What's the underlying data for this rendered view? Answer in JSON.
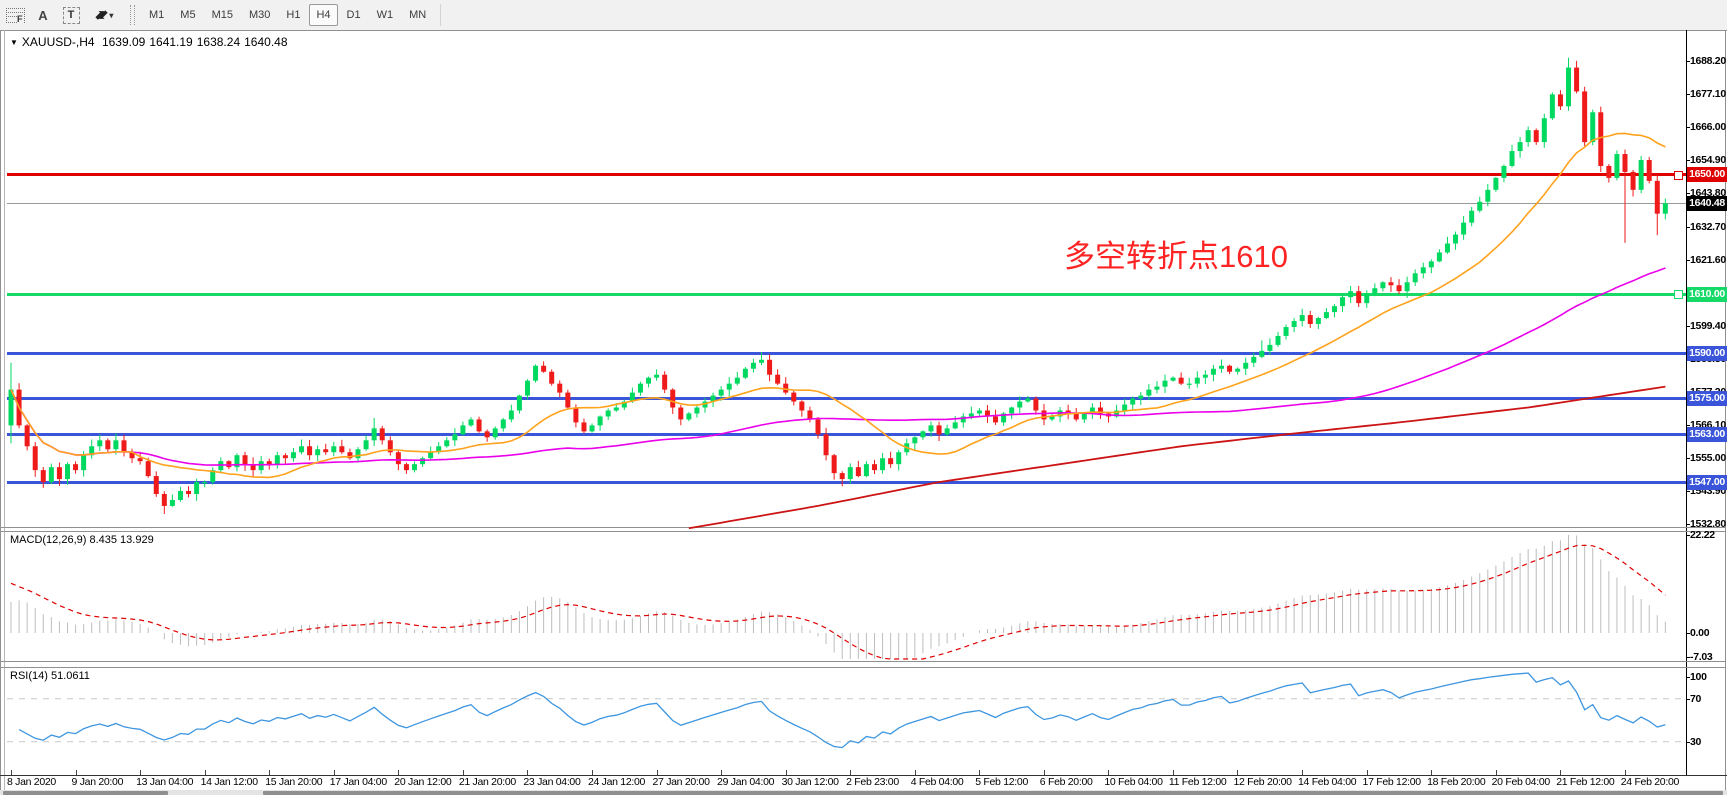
{
  "toolbar": {
    "tools": [
      {
        "name": "fibonacci-tool",
        "label": "F"
      },
      {
        "name": "text-label-tool",
        "label": "A"
      },
      {
        "name": "text-tool",
        "label": "T"
      },
      {
        "name": "arrows-tool",
        "label": "arrows"
      }
    ],
    "timeframes": [
      "M1",
      "M5",
      "M15",
      "M30",
      "H1",
      "H4",
      "D1",
      "W1",
      "MN"
    ],
    "active_timeframe": "H4"
  },
  "chart_header": {
    "symbol_period": "XAUUSD-,H4",
    "open": "1639.09",
    "high": "1641.19",
    "low": "1638.24",
    "close": "1640.48"
  },
  "annotation": {
    "text": "多空转折点1610",
    "color": "#ff2424"
  },
  "indicators": {
    "macd_label": "MACD(12,26,9) 8.435 13.929",
    "rsi_label": "RSI(14) 51.0611"
  },
  "levels": [
    {
      "name": "resistance-line-1650",
      "label": "1650.00",
      "price": 1650.0,
      "color": "#df0000",
      "thickness": 3,
      "handle": true
    },
    {
      "name": "current-price-line",
      "label": "1640.48",
      "price": 1640.48,
      "color": "#000000",
      "line_color": "#9a9a9a",
      "thickness": 1,
      "handle": false
    },
    {
      "name": "pivot-line-1610",
      "label": "1610.00",
      "price": 1610.0,
      "color": "#17d968",
      "thickness": 3,
      "handle": true
    },
    {
      "name": "support-line-1590",
      "label": "1590.00",
      "price": 1590.0,
      "color": "#3a55d9",
      "thickness": 3,
      "handle": false
    },
    {
      "name": "support-line-1575",
      "label": "1575.00",
      "price": 1575.0,
      "color": "#3a55d9",
      "thickness": 3,
      "handle": false
    },
    {
      "name": "support-line-1563",
      "label": "1563.00",
      "price": 1563.0,
      "color": "#3a55d9",
      "thickness": 3,
      "handle": false
    },
    {
      "name": "support-line-1547",
      "label": "1547.00",
      "price": 1547.0,
      "color": "#3a55d9",
      "thickness": 3,
      "handle": false
    }
  ],
  "axes": {
    "price_ticks": [
      1688.2,
      1677.1,
      1666.0,
      1654.9,
      1643.8,
      1632.7,
      1621.6,
      1610.5,
      1599.4,
      1588.3,
      1577.2,
      1566.1,
      1555.0,
      1543.9,
      1532.8
    ],
    "macd_ticks": [
      "22.22",
      "0.00",
      "-7.03"
    ],
    "rsi_ticks": [
      "100",
      "70",
      "30"
    ],
    "date_labels": [
      "8 Jan 2020",
      "9 Jan 20:00",
      "13 Jan 04:00",
      "14 Jan 12:00",
      "15 Jan 20:00",
      "17 Jan 04:00",
      "20 Jan 12:00",
      "21 Jan 20:00",
      "23 Jan 04:00",
      "24 Jan 12:00",
      "27 Jan 20:00",
      "29 Jan 04:00",
      "30 Jan 12:00",
      "2 Feb 23:00",
      "4 Feb 04:00",
      "5 Feb 12:00",
      "6 Feb 20:00",
      "10 Feb 04:00",
      "11 Feb 12:00",
      "12 Feb 20:00",
      "14 Feb 04:00",
      "17 Feb 12:00",
      "18 Feb 20:00",
      "20 Feb 04:00",
      "21 Feb 12:00",
      "24 Feb 20:00"
    ]
  },
  "chart_data": [
    {
      "type": "candlestick",
      "symbol": "XAUUSD-",
      "period": "H4",
      "ohlc_current": {
        "open": 1639.09,
        "high": 1641.19,
        "low": 1638.24,
        "close": 1640.48
      },
      "ylim": [
        1532.8,
        1695.0
      ],
      "up_color": "#00d95f",
      "down_color": "#ef1a1a",
      "open_first": 1566,
      "closes": [
        1578,
        1566,
        1559,
        1551,
        1547,
        1552,
        1548,
        1553,
        1551,
        1556,
        1559,
        1561,
        1558,
        1561,
        1557,
        1555,
        1554,
        1549,
        1543,
        1539,
        1541,
        1544,
        1543,
        1547,
        1547,
        1551,
        1554,
        1552,
        1556,
        1553,
        1551,
        1554,
        1553,
        1556,
        1555,
        1557,
        1559,
        1556,
        1558,
        1557,
        1559,
        1557,
        1555,
        1558,
        1561,
        1565,
        1561,
        1557,
        1553,
        1551,
        1553,
        1555,
        1557,
        1559,
        1561,
        1563,
        1566,
        1568,
        1564,
        1562,
        1565,
        1568,
        1571,
        1576,
        1581,
        1586,
        1584,
        1580,
        1577,
        1572,
        1567,
        1564,
        1566,
        1569,
        1571,
        1572,
        1574,
        1577,
        1580,
        1582,
        1583,
        1578,
        1572,
        1568,
        1570,
        1572,
        1574,
        1576,
        1578,
        1580,
        1582,
        1585,
        1587,
        1588,
        1583,
        1580,
        1577,
        1574,
        1571,
        1568,
        1563,
        1556,
        1550,
        1548,
        1552,
        1549,
        1553,
        1551,
        1555,
        1553,
        1557,
        1560,
        1562,
        1564,
        1566,
        1563,
        1565,
        1567,
        1569,
        1570,
        1571,
        1569,
        1567,
        1570,
        1572,
        1574,
        1575,
        1571,
        1568,
        1569,
        1571,
        1570,
        1568,
        1570,
        1572,
        1570,
        1569,
        1571,
        1573,
        1575,
        1576,
        1578,
        1579,
        1581,
        1582,
        1580,
        1580,
        1582,
        1583,
        1585,
        1586,
        1584,
        1585,
        1587,
        1589,
        1591,
        1593,
        1596,
        1599,
        1601,
        1603,
        1600,
        1602,
        1604,
        1606,
        1609,
        1611,
        1607,
        1610,
        1612,
        1614,
        1613,
        1611,
        1614,
        1617,
        1619,
        1621,
        1624,
        1627,
        1630,
        1634,
        1638,
        1641,
        1645,
        1649,
        1653,
        1658,
        1661,
        1665,
        1661,
        1669,
        1677,
        1673,
        1686,
        1678,
        1661,
        1671,
        1653,
        1649,
        1657,
        1651,
        1645,
        1655,
        1648,
        1637,
        1640.5
      ],
      "extremes": {
        "0": {
          "high": 1587,
          "low": 1560
        },
        "19": {
          "low": 1536.3
        },
        "45": {
          "high": 1568.5
        },
        "93": {
          "high": 1590.6
        },
        "103": {
          "low": 1545.6
        },
        "155": {
          "high": 1594.5
        },
        "193": {
          "high": 1689.3
        },
        "200": {
          "low": 1627.2
        },
        "204": {
          "low": 1629.8
        }
      },
      "moving_averages": [
        {
          "name": "fast-ma",
          "period": 16,
          "color": "#ffa21c"
        },
        {
          "name": "medium-ma",
          "period": 70,
          "color": "#ea00ea"
        }
      ],
      "slow_ma": {
        "name": "slow-ma",
        "color": "#cc1414",
        "waypoints": [
          [
            84,
            1531.5
          ],
          [
            100,
            1539
          ],
          [
            115,
            1547
          ],
          [
            130,
            1553
          ],
          [
            145,
            1559
          ],
          [
            158,
            1563
          ],
          [
            172,
            1567
          ],
          [
            188,
            1572
          ],
          [
            205,
            1579
          ]
        ]
      }
    },
    {
      "type": "bar",
      "name": "MACD",
      "params": "12,26,9",
      "main_value": 8.435,
      "signal_value": 13.929,
      "histogram_color": "#bdbdbd",
      "signal_color": "#e00000",
      "signal_style": "dashed"
    },
    {
      "type": "line",
      "name": "RSI",
      "period": 14,
      "current": 51.0611,
      "overbought": 70,
      "oversold": 30,
      "line_color": "#3e96e0",
      "level_color": "#c8c8c8"
    }
  ]
}
